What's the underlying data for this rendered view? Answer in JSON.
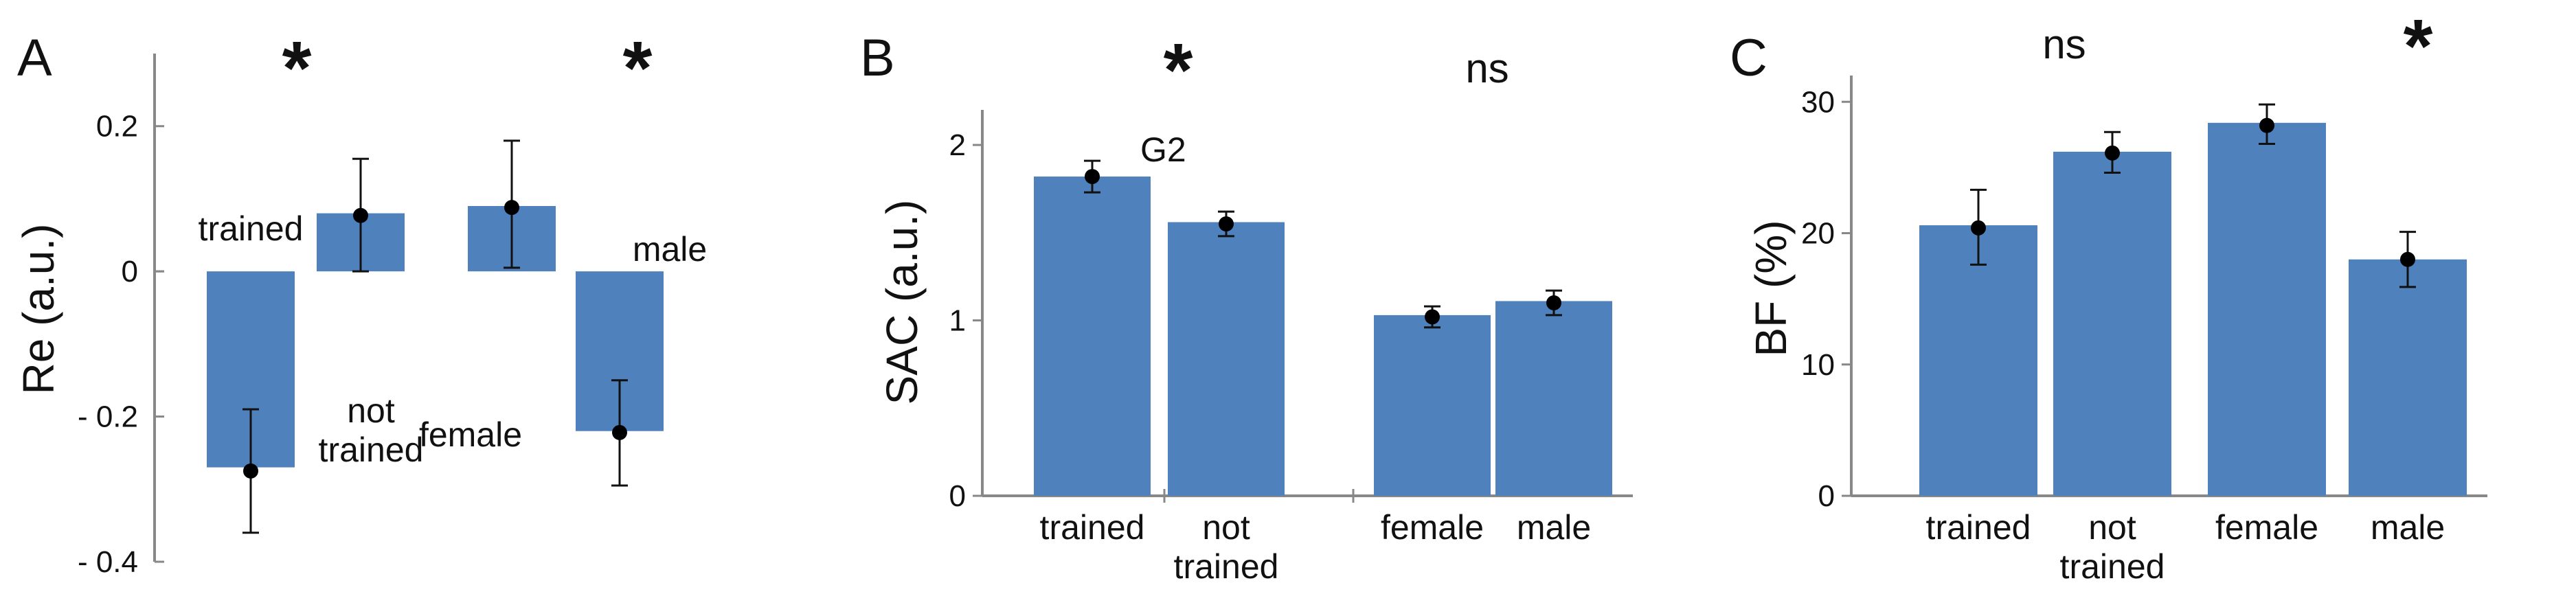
{
  "chart_data": [
    {
      "type": "bar",
      "panel": "A",
      "ylabel": "Re (a.u.)",
      "ylim": [
        -0.4,
        0.3
      ],
      "yticks": [
        0.2,
        0,
        -0.2,
        -0.4
      ],
      "ytick_labels": [
        "0.2",
        "0",
        "- 0.2",
        "- 0.4"
      ],
      "bar_color": "#4f81bd",
      "categories": [
        "trained",
        "not trained",
        "female",
        "male"
      ],
      "category_lines": [
        [
          "trained"
        ],
        [
          "not",
          "trained"
        ],
        [
          "female"
        ],
        [
          "male"
        ]
      ],
      "values": [
        -0.27,
        0.08,
        0.09,
        -0.22
      ],
      "means": [
        -0.275,
        0.077,
        0.088,
        -0.222
      ],
      "err_low": [
        -0.36,
        0.0,
        0.005,
        -0.295
      ],
      "err_high": [
        -0.19,
        0.155,
        0.18,
        -0.15
      ],
      "significance": [
        "*",
        "*"
      ]
    },
    {
      "type": "bar",
      "panel": "B",
      "ylabel": "SAC (a.u.)",
      "ylim": [
        0,
        2.2
      ],
      "yticks": [
        0,
        1,
        2
      ],
      "ytick_labels": [
        "0",
        "1",
        "2"
      ],
      "bar_color": "#4f81bd",
      "categories": [
        "trained",
        "not trained",
        "female",
        "male"
      ],
      "category_lines": [
        [
          "trained"
        ],
        [
          "not",
          "trained"
        ],
        [
          "female"
        ],
        [
          "male"
        ]
      ],
      "values": [
        1.82,
        1.56,
        1.03,
        1.11
      ],
      "means": [
        1.82,
        1.55,
        1.02,
        1.1
      ],
      "err_low": [
        1.73,
        1.48,
        0.96,
        1.03
      ],
      "err_high": [
        1.91,
        1.62,
        1.08,
        1.17
      ],
      "significance": [
        "*",
        "ns"
      ],
      "annotation": "G2"
    },
    {
      "type": "bar",
      "panel": "C",
      "ylabel": "BF (%)",
      "ylim": [
        0,
        32
      ],
      "yticks": [
        0,
        10,
        20,
        30
      ],
      "ytick_labels": [
        "0",
        "10",
        "20",
        "30"
      ],
      "bar_color": "#4f81bd",
      "categories": [
        "trained",
        "not trained",
        "female",
        "male"
      ],
      "category_lines": [
        [
          "trained"
        ],
        [
          "not",
          "trained"
        ],
        [
          "female"
        ],
        [
          "male"
        ]
      ],
      "values": [
        20.6,
        26.2,
        28.4,
        18.0
      ],
      "means": [
        20.4,
        26.1,
        28.2,
        18.0
      ],
      "err_low": [
        17.6,
        24.6,
        26.8,
        15.9
      ],
      "err_high": [
        23.3,
        27.7,
        29.8,
        20.1
      ],
      "significance": [
        "ns",
        "*"
      ]
    }
  ]
}
